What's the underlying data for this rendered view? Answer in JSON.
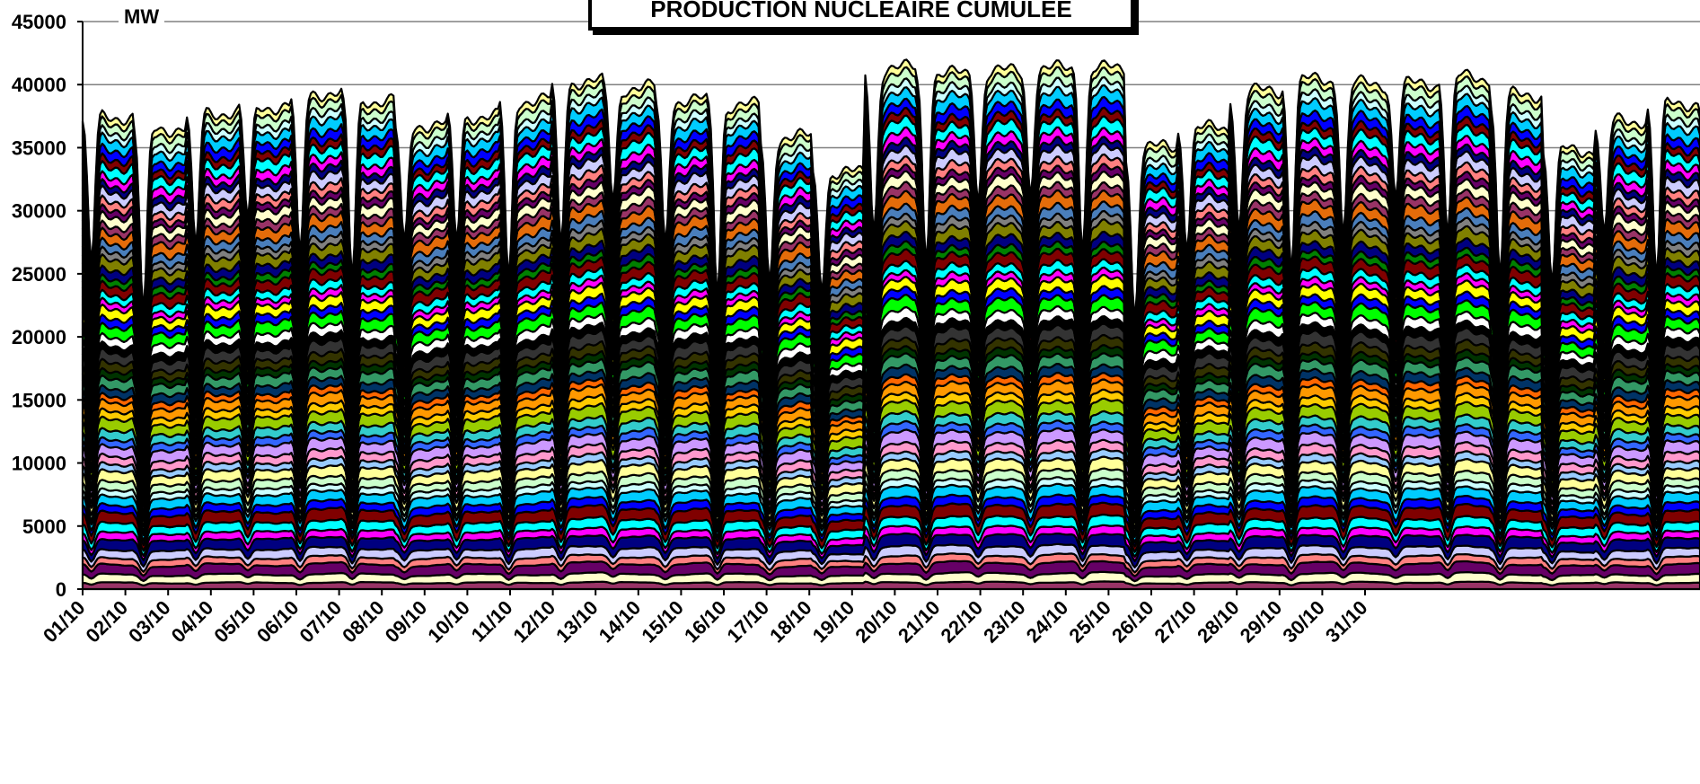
{
  "chart_data": {
    "type": "area",
    "stacked": true,
    "title": "PRODUCTION NUCLEAIRE CUMULEE",
    "ylabel": "MW",
    "ylim": [
      0,
      45000
    ],
    "yticks": [
      0,
      5000,
      10000,
      15000,
      20000,
      25000,
      30000,
      35000,
      40000,
      45000
    ],
    "categories": [
      "01/10",
      "02/10",
      "03/10",
      "04/10",
      "05/10",
      "06/10",
      "07/10",
      "08/10",
      "09/10",
      "10/10",
      "11/10",
      "12/10",
      "13/10",
      "14/10",
      "15/10",
      "16/10",
      "17/10",
      "18/10",
      "19/10",
      "20/10",
      "21/10",
      "22/10",
      "23/10",
      "24/10",
      "25/10",
      "26/10",
      "27/10",
      "28/10",
      "29/10",
      "30/10",
      "31/10"
    ],
    "total_mw": [
      37500,
      36500,
      37800,
      38300,
      39300,
      38800,
      36800,
      37500,
      38800,
      40200,
      39800,
      38700,
      38400,
      35800,
      33000,
      41300,
      40800,
      41100,
      41200,
      41300,
      35000,
      36500,
      39500,
      40300,
      40100,
      40000,
      40600,
      39200,
      34800,
      37200,
      38500
    ],
    "grid": true,
    "legend": "none",
    "series_count": 56,
    "series_colors": [
      "#993366",
      "#ffffcc",
      "#660066",
      "#ff8080",
      "#ccccff",
      "#000080",
      "#ff00ff",
      "#00ffff",
      "#800000",
      "#0000ff",
      "#00ccff",
      "#ccffff",
      "#ccffcc",
      "#ffff99",
      "#99ccff",
      "#ff99cc",
      "#cc99ff",
      "#3366ff",
      "#33cccc",
      "#99cc00",
      "#ffcc00",
      "#ff9900",
      "#ff6600",
      "#003366",
      "#339966",
      "#003300",
      "#333300",
      "#333333",
      "#000000",
      "#ffffff",
      "#00ff00",
      "#0000ff",
      "#ffff00",
      "#ff00ff",
      "#00ffff",
      "#800000",
      "#008000",
      "#000080",
      "#808000",
      "#808080",
      "#4a7ebb",
      "#e46c0a",
      "#993366",
      "#ffffcc",
      "#660066",
      "#ff8080",
      "#ccccff",
      "#000080",
      "#ff00ff",
      "#00ffff",
      "#800000",
      "#0000ff",
      "#00ccff",
      "#ccffff",
      "#ccffcc",
      "#ffff99"
    ]
  }
}
